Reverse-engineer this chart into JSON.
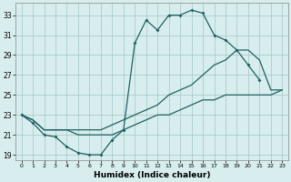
{
  "xlabel": "Humidex (Indice chaleur)",
  "bg_color": "#d8eeee",
  "grid_color": "#aacccc",
  "line_color": "#206060",
  "xlim": [
    -0.5,
    23.5
  ],
  "ylim": [
    18.5,
    34.2
  ],
  "yticks": [
    19,
    21,
    23,
    25,
    27,
    29,
    31,
    33
  ],
  "xticks": [
    0,
    1,
    2,
    3,
    4,
    5,
    6,
    7,
    8,
    9,
    10,
    11,
    12,
    13,
    14,
    15,
    16,
    17,
    18,
    19,
    20,
    21,
    22,
    23
  ],
  "line1_x": [
    0,
    1,
    2,
    3,
    4,
    5,
    6,
    7,
    8,
    9,
    10,
    11,
    12,
    13,
    14,
    15,
    16,
    17,
    18,
    19,
    20,
    21
  ],
  "line1_y": [
    23.0,
    22.2,
    21.0,
    20.8,
    19.8,
    19.2,
    19.0,
    19.0,
    20.5,
    21.5,
    30.2,
    32.5,
    31.5,
    33.0,
    33.0,
    33.5,
    33.2,
    31.0,
    30.5,
    29.5,
    28.0,
    26.5
  ],
  "line2_x": [
    0,
    1,
    2,
    3,
    4,
    5,
    6,
    7,
    8,
    9,
    10,
    11,
    12,
    13,
    14,
    15,
    16,
    17,
    18,
    19,
    20,
    21,
    22,
    23
  ],
  "line2_y": [
    23.0,
    22.5,
    21.5,
    21.5,
    21.5,
    21.5,
    21.5,
    21.5,
    22.0,
    22.5,
    23.0,
    23.5,
    24.0,
    25.0,
    25.5,
    26.0,
    27.0,
    28.0,
    28.5,
    29.5,
    29.5,
    28.5,
    25.5,
    25.5
  ],
  "line3_x": [
    0,
    1,
    2,
    3,
    4,
    5,
    6,
    7,
    8,
    9,
    10,
    11,
    12,
    13,
    14,
    15,
    16,
    17,
    18,
    19,
    20,
    21,
    22,
    23
  ],
  "line3_y": [
    23.0,
    22.5,
    21.5,
    21.5,
    21.5,
    21.0,
    21.0,
    21.0,
    21.0,
    21.5,
    22.0,
    22.5,
    23.0,
    23.0,
    23.5,
    24.0,
    24.5,
    24.5,
    25.0,
    25.0,
    25.0,
    25.0,
    25.0,
    25.5
  ]
}
